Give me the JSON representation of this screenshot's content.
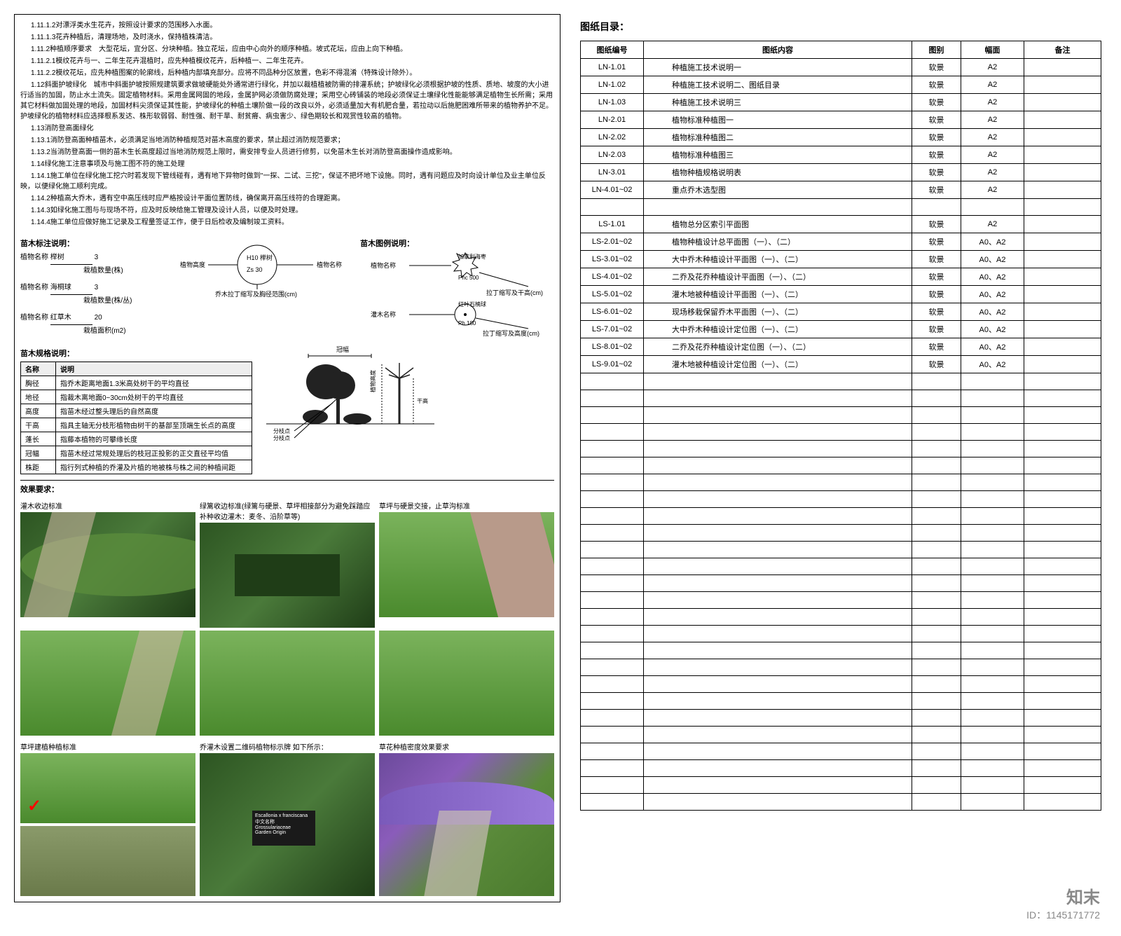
{
  "left": {
    "text_lines": [
      "1.11.1.2对漂浮类水生花卉，按照设计要求的范围移入水面。",
      "1.11.1.3花卉种植后，清理场地，及时浇水，保持植株清洁。",
      "1.11.2种植顺序要求　大型花坛，宜分区、分块种植。独立花坛，应由中心向外的顺序种植。坡式花坛，应由上向下种植。",
      "1.11.2.1模纹花卉与一、二年生花卉混植时，应先种植模纹花卉，后种植一、二年生花卉。",
      "1.11.2.2模纹花坛，应先种植图案的轮廓线，后种植内部填充部分。应将不同品种分区放置，色彩不得混淆（特殊设计除外）。",
      "1.12斜面护坡绿化　城市中斜面护坡按照规建筑要求做坡硬能处外通常进行绿化，并加以裁植植被防需的排灌系统；护坡绿化必须根据护坡的性质、质地、坡度的大小进行适当的加固，防止水土流失。固定植物材料。采用金属网固的地段，金属护网必须做防腐处理；采用空心砖铺装的地段必须保证土壤绿化性能能够满足植物生长所需；采用其它材料做加固处理的地段，加固材料尖须保证其性能，护坡绿化的种植土壤阶做一段的改良以外，必须适量加大有机肥合量，若拉动以后施肥困难所带来的植物养护不足。护坡绿化的植物材料应选择根系发达、株形软弱弱、耐性强、耐干旱、耐贫瘠、病虫害少、绿色期较长和观赏性较高的植物。",
      "1.13消防登高面绿化",
      "1.13.1消防登高面种植苗木，必须满足当地消防种植规范对苗木高度的要求，禁止超过消防规范要求；",
      "1.13.2当消防登高面一侧的苗木生长高度超过当地消防规范上限时，需安排专业人员进行修剪，以免苗木生长对消防登高面操作造成影响。",
      "1.14绿化施工注意事项及与施工图不符的施工处理",
      "1.14.1施工单位在绿化施工挖穴时若发现下管线碰有，遇有地下异物时做到\"一探、二试、三挖\"，保证不把坏地下设施。同时，遇有问题应及时向设计单位及业主单位反映，以便绿化施工顺利完成。",
      "1.14.2种植高大乔木，遇有空中高压线时应严格按设计平面位置防线，确保离开高压线符的合理距离。",
      "1.14.3如绿化施工图与与现场不符，应及时反映给施工管理及设计人员，以便及时处理。",
      "1.14.4施工单位应做好施工记录及工程量签证工作，便于日后检收及编制竣工资料。"
    ],
    "label_section_title": "苗木标注说明：",
    "diagram_section_title": "苗木图例说明：",
    "plant_labels": {
      "name": "植物名称",
      "sample1": "榉树",
      "sample1_val": "3",
      "qty_label": "栽植数量(株)",
      "sample2": "海桐球",
      "sample2_val": "3",
      "qty_label2": "栽植数量(株/丛)",
      "sample3": "红草木",
      "sample3_val": "20",
      "area_label": "栽植面积(m2)",
      "latin_label": "乔木拉丁缩写及胸径范围(cm)",
      "latin2_label": "拉丁缩写及干高(cm)",
      "latin3_label": "拉丁缩写及高度(cm)",
      "height_label": "植物高度",
      "shrub_label": "灌木名称",
      "sample_h": "H10 榉树",
      "sample_z": "Zs 30",
      "spray_label": "加拿利海枣",
      "spray_val": "Phc 500",
      "ball_label": "红叶石楠球",
      "ball_val": "Ph 180"
    },
    "spec_title": "苗木规格说明：",
    "spec_rows": [
      {
        "name": "名称",
        "desc": "说明"
      },
      {
        "name": "胸径",
        "desc": "指乔木距离地面1.3米高处树干的平均直径"
      },
      {
        "name": "地径",
        "desc": "指裁木离地面0~30cm处树干的平均直径"
      },
      {
        "name": "高度",
        "desc": "指苗木经过整头理后的自然高度"
      },
      {
        "name": "干高",
        "desc": "指具主轴无分枝形植物由树干的基部至顶端生长点的高度"
      },
      {
        "name": "蓬长",
        "desc": "指藤本植物的可攀缘长度"
      },
      {
        "name": "冠幅",
        "desc": "指苗木经过常规处理后的枝冠正投影的正交直径平均值"
      },
      {
        "name": "株距",
        "desc": "指行列式种植的乔灌及片植的地被株与株之间的种植间距"
      }
    ],
    "tree_diag_labels": {
      "crown": "冠幅",
      "height": "植物高度",
      "trunk": "干高",
      "branch1": "分枝点",
      "branch2": "分枝点"
    },
    "effect_title": "效果要求：",
    "photo_labels": [
      "灌木收边标准",
      "绿篱收边标准(绿篱与硬景、草坪相接部分为避免踩踏应补种收边灌木：麦冬、沿阶草等)",
      "草坪与硬景交接，止草沟标准",
      "草坪建植种植标准",
      "乔灌木设置二维码植物标示牌 如下所示：",
      "草花种植密度效果要求"
    ],
    "sign_text": {
      "line1": "Escallonia x franciscana",
      "line2": "中文名称",
      "line3": "Grossulariaceae",
      "line4": "Garden Origin"
    }
  },
  "right": {
    "catalog_title": "图纸目录：",
    "headers": [
      "图纸编号",
      "图纸内容",
      "图别",
      "幅面",
      "备注"
    ],
    "rows": [
      {
        "no": "LN-1.01",
        "name": "种植施工技术说明一",
        "type": "软景",
        "size": "A2",
        "remark": ""
      },
      {
        "no": "LN-1.02",
        "name": "种植施工技术说明二、图纸目录",
        "type": "软景",
        "size": "A2",
        "remark": ""
      },
      {
        "no": "LN-1.03",
        "name": "种植施工技术说明三",
        "type": "软景",
        "size": "A2",
        "remark": ""
      },
      {
        "no": "LN-2.01",
        "name": "植物标准种植图一",
        "type": "软景",
        "size": "A2",
        "remark": ""
      },
      {
        "no": "LN-2.02",
        "name": "植物标准种植图二",
        "type": "软景",
        "size": "A2",
        "remark": ""
      },
      {
        "no": "LN-2.03",
        "name": "植物标准种植图三",
        "type": "软景",
        "size": "A2",
        "remark": ""
      },
      {
        "no": "LN-3.01",
        "name": "植物种植规格说明表",
        "type": "软景",
        "size": "A2",
        "remark": ""
      },
      {
        "no": "LN-4.01~02",
        "name": "重点乔木选型图",
        "type": "软景",
        "size": "A2",
        "remark": ""
      },
      {
        "no": "",
        "name": "",
        "type": "",
        "size": "",
        "remark": ""
      },
      {
        "no": "LS-1.01",
        "name": "植物总分区索引平面图",
        "type": "软景",
        "size": "A2",
        "remark": ""
      },
      {
        "no": "LS-2.01~02",
        "name": "植物种植设计总平面图（一）、（二）",
        "type": "软景",
        "size": "A0、A2",
        "remark": ""
      },
      {
        "no": "LS-3.01~02",
        "name": "大中乔木种植设计平面图（一）、（二）",
        "type": "软景",
        "size": "A0、A2",
        "remark": ""
      },
      {
        "no": "LS-4.01~02",
        "name": "二乔及花乔种植设计平面图（一）、（二）",
        "type": "软景",
        "size": "A0、A2",
        "remark": ""
      },
      {
        "no": "LS-5.01~02",
        "name": "灌木地被种植设计平面图（一）、（二）",
        "type": "软景",
        "size": "A0、A2",
        "remark": ""
      },
      {
        "no": "LS-6.01~02",
        "name": "现场移栽保留乔木平面图（一）、（二）",
        "type": "软景",
        "size": "A0、A2",
        "remark": ""
      },
      {
        "no": "LS-7.01~02",
        "name": "大中乔木种植设计定位图（一）、（二）",
        "type": "软景",
        "size": "A0、A2",
        "remark": ""
      },
      {
        "no": "LS-8.01~02",
        "name": "二乔及花乔种植设计定位图（一）、（二）",
        "type": "软景",
        "size": "A0、A2",
        "remark": ""
      },
      {
        "no": "LS-9.01~02",
        "name": "灌木地被种植设计定位图（一）、（二）",
        "type": "软景",
        "size": "A0、A2",
        "remark": ""
      }
    ],
    "empty_rows": 26
  },
  "footer": {
    "brand": "知末",
    "id": "ID：1145171772"
  },
  "colors": {
    "border": "#000000",
    "watermark": "rgba(180,180,180,0.3)",
    "grass1": "#7bb35c",
    "grass2": "#4a8a2d",
    "shrub1": "#2d5522",
    "footer_gray": "#888888"
  }
}
